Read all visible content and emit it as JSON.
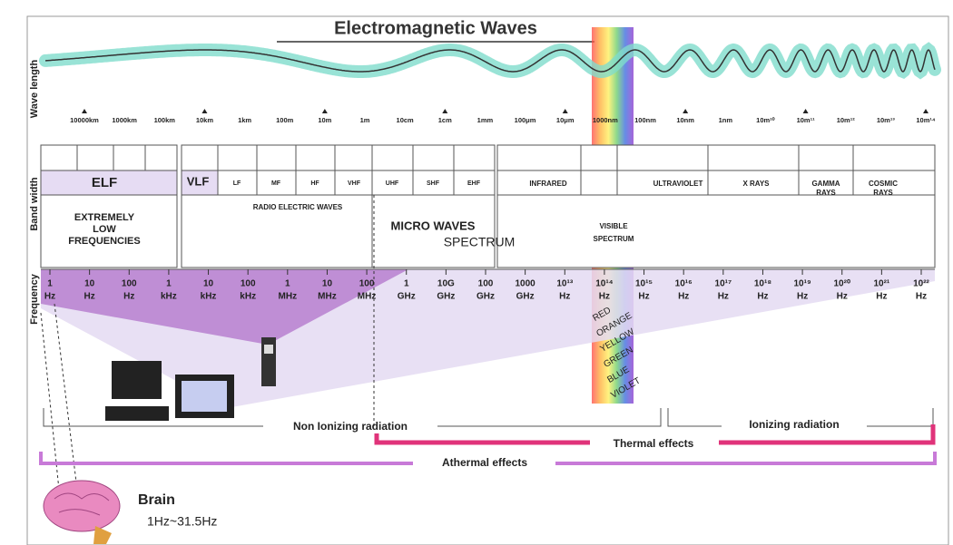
{
  "title": "Electromagnetic Waves",
  "axis_labels": {
    "wave_length": "Wave length",
    "band_width": "Band width",
    "frequency": "Frequency"
  },
  "wavelengths": [
    "10000km",
    "1000km",
    "100km",
    "10km",
    "1km",
    "100m",
    "10m",
    "1m",
    "10cm",
    "1cm",
    "1mm",
    "100μm",
    "10μm",
    "1000nm",
    "100nm",
    "10nm",
    "1nm",
    "10m¹⁰",
    "10m¹¹",
    "10m¹²",
    "10m¹³",
    "10m¹⁴"
  ],
  "bands": {
    "elf": "ELF",
    "elf_full": "EXTREMELY LOW FREQUENCIES",
    "vlf": "VLF",
    "radio": [
      "LF",
      "MF",
      "HF",
      "VHF"
    ],
    "micro": [
      "UHF",
      "SHF",
      "EHF"
    ],
    "radio_waves": "RADIO ELECTRIC WAVES",
    "micro_waves": "MICRO WAVES",
    "spectrum": "SPECTRUM",
    "infrared": "INFRARED",
    "visible": "VISIBLE SPECTRUM",
    "ultraviolet": "ULTRAVIOLET",
    "x_rays": "X RAYS",
    "gamma": "GAMMA RAYS",
    "cosmic": "COSMIC RAYS"
  },
  "frequencies": [
    {
      "value": "1",
      "unit": "Hz"
    },
    {
      "value": "10",
      "unit": "Hz"
    },
    {
      "value": "100",
      "unit": "Hz"
    },
    {
      "value": "1",
      "unit": "kHz"
    },
    {
      "value": "10",
      "unit": "kHz"
    },
    {
      "value": "100",
      "unit": "kHz"
    },
    {
      "value": "1",
      "unit": "MHz"
    },
    {
      "value": "10",
      "unit": "MHz"
    },
    {
      "value": "100",
      "unit": "MHz"
    },
    {
      "value": "1",
      "unit": "GHz"
    },
    {
      "value": "10G",
      "unit": "GHz"
    },
    {
      "value": "100",
      "unit": "GHz"
    },
    {
      "value": "1000",
      "unit": "GHz"
    },
    {
      "value": "10¹³",
      "unit": "Hz"
    },
    {
      "value": "10¹⁴",
      "unit": "Hz"
    },
    {
      "value": "10¹⁵",
      "unit": "Hz"
    },
    {
      "value": "10¹⁶",
      "unit": "Hz"
    },
    {
      "value": "10¹⁷",
      "unit": "Hz"
    },
    {
      "value": "10¹⁸",
      "unit": "Hz"
    },
    {
      "value": "10¹⁹",
      "unit": "Hz"
    },
    {
      "value": "10²⁰",
      "unit": "Hz"
    },
    {
      "value": "10²¹",
      "unit": "Hz"
    },
    {
      "value": "10²²",
      "unit": "Hz"
    }
  ],
  "colors": [
    "RED",
    "ORANGE",
    "YELLOW",
    "GREEN",
    "BLUE",
    "VIOLET"
  ],
  "radiation": {
    "non_ionizing": "Non Ionizing radiation",
    "ionizing": "Ionizing radiation",
    "thermal": "Thermal effects",
    "athermal": "Athermal effects"
  },
  "brain": {
    "label": "Brain",
    "range": "1Hz~31.5Hz"
  }
}
